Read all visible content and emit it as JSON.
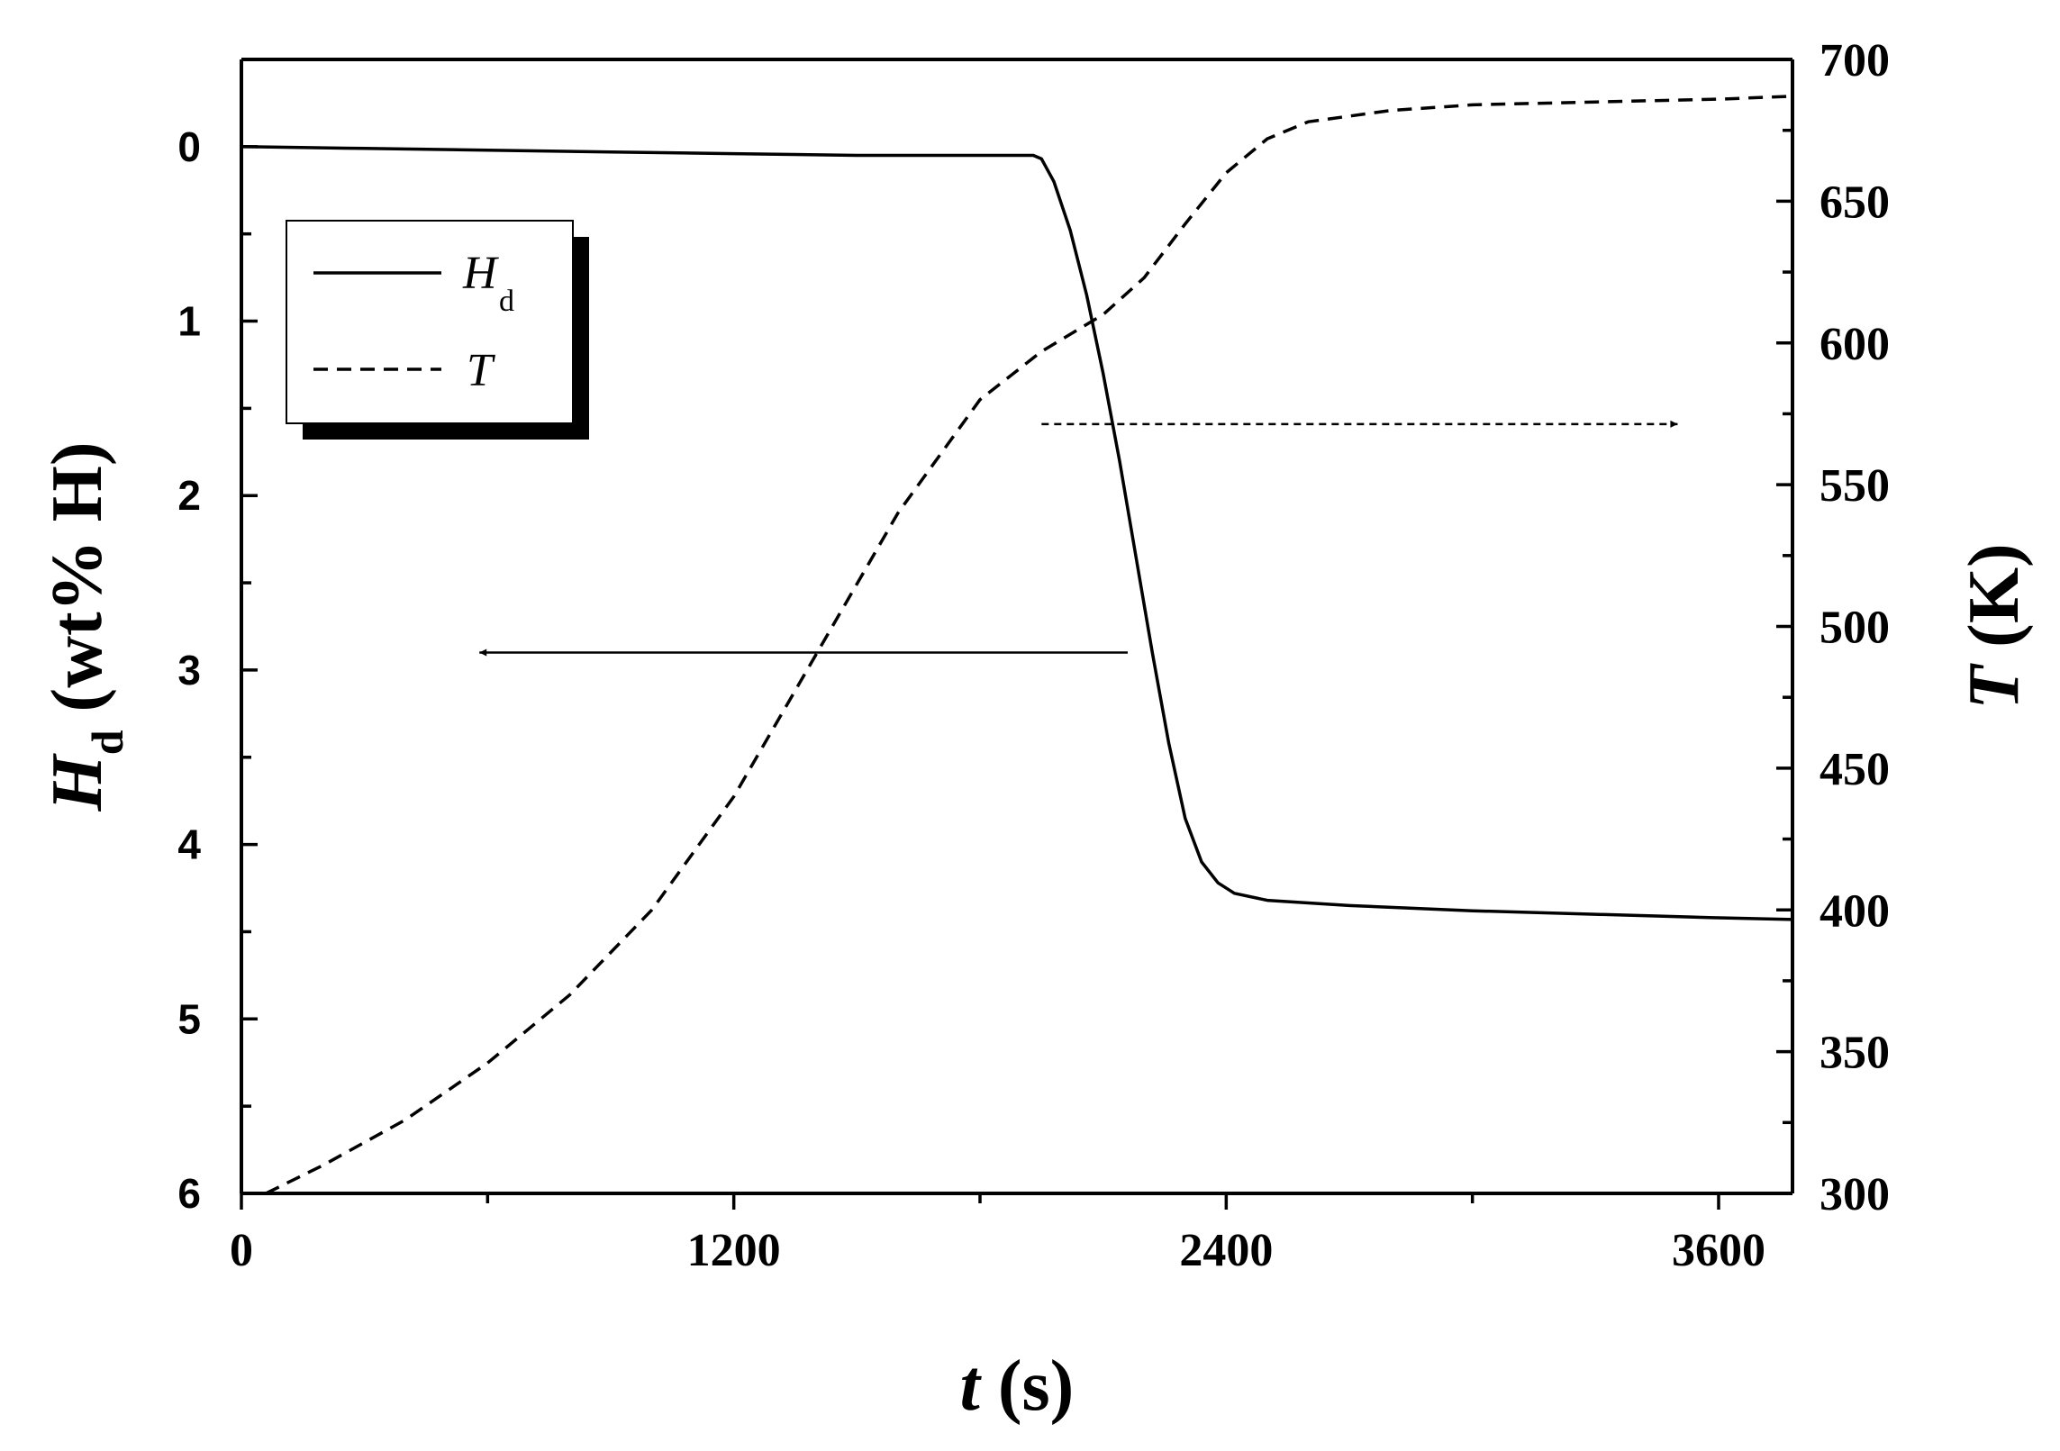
{
  "chart_data": {
    "type": "line",
    "x_axis": {
      "label_symbol": "t",
      "label_unit": "(s)",
      "range": [
        0,
        3780
      ],
      "ticks": [
        0,
        1200,
        2400,
        3600
      ],
      "tick_labels": [
        "0",
        "1200",
        "2400",
        "3600"
      ],
      "minor_step": 600
    },
    "y_left_axis": {
      "label_symbol": "H",
      "label_subscript": "d",
      "label_unit": "(wt% H)",
      "range": [
        -0.5,
        6
      ],
      "inverted": true,
      "ticks": [
        0,
        1,
        2,
        3,
        4,
        5,
        6
      ],
      "tick_labels": [
        "0",
        "1",
        "2",
        "3",
        "4",
        "5",
        "6"
      ],
      "minor_step": 0.5
    },
    "y_right_axis": {
      "label_symbol": "T",
      "label_unit": "(K)",
      "range": [
        300,
        700
      ],
      "ticks": [
        300,
        350,
        400,
        450,
        500,
        550,
        600,
        650,
        700
      ],
      "tick_labels": [
        "300",
        "350",
        "400",
        "450",
        "500",
        "550",
        "600",
        "650",
        "700"
      ],
      "minor_step": 25
    },
    "series": [
      {
        "name": "H",
        "name_subscript": "d",
        "axis": "left",
        "style": "solid",
        "x": [
          0,
          300,
          600,
          900,
          1200,
          1500,
          1800,
          1930,
          1950,
          1980,
          2020,
          2060,
          2100,
          2140,
          2180,
          2220,
          2260,
          2300,
          2340,
          2380,
          2420,
          2500,
          2700,
          3000,
          3300,
          3600,
          3780
        ],
        "y": [
          0.0,
          0.01,
          0.02,
          0.03,
          0.04,
          0.05,
          0.05,
          0.05,
          0.07,
          0.2,
          0.48,
          0.85,
          1.3,
          1.8,
          2.35,
          2.9,
          3.42,
          3.85,
          4.1,
          4.22,
          4.28,
          4.32,
          4.35,
          4.38,
          4.4,
          4.42,
          4.43
        ]
      },
      {
        "name": "T",
        "axis": "right",
        "style": "dashed",
        "x": [
          60,
          200,
          400,
          600,
          800,
          1000,
          1200,
          1400,
          1600,
          1800,
          1950,
          2100,
          2200,
          2300,
          2400,
          2500,
          2600,
          2800,
          3000,
          3300,
          3600,
          3780
        ],
        "y": [
          300,
          310,
          326,
          346,
          370,
          400,
          440,
          490,
          540,
          580,
          597,
          610,
          623,
          642,
          660,
          672,
          678,
          682,
          684,
          685,
          686,
          687
        ]
      }
    ],
    "annotations": [
      {
        "type": "arrow",
        "style": "solid",
        "points_to": "left",
        "x_from": 2160,
        "x_to": 580,
        "y_left": 2.9
      },
      {
        "type": "arrow",
        "style": "dashed",
        "points_to": "right",
        "x_from": 1950,
        "x_to": 3500,
        "y_left": 1.59
      }
    ],
    "legend": {
      "position": "top-left",
      "shadow": true
    },
    "grid": false
  }
}
